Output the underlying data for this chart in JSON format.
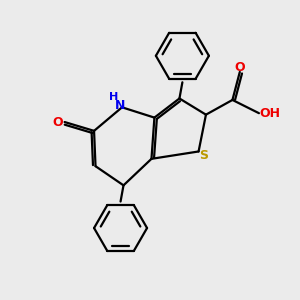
{
  "bg_color": "#ebebeb",
  "bond_color": "#000000",
  "N_color": "#0000ee",
  "O_color": "#ee0000",
  "S_color": "#bb9900",
  "line_width": 1.6,
  "figsize": [
    3.0,
    3.0
  ],
  "dpi": 100,
  "xlim": [
    0,
    10
  ],
  "ylim": [
    0,
    10
  ]
}
